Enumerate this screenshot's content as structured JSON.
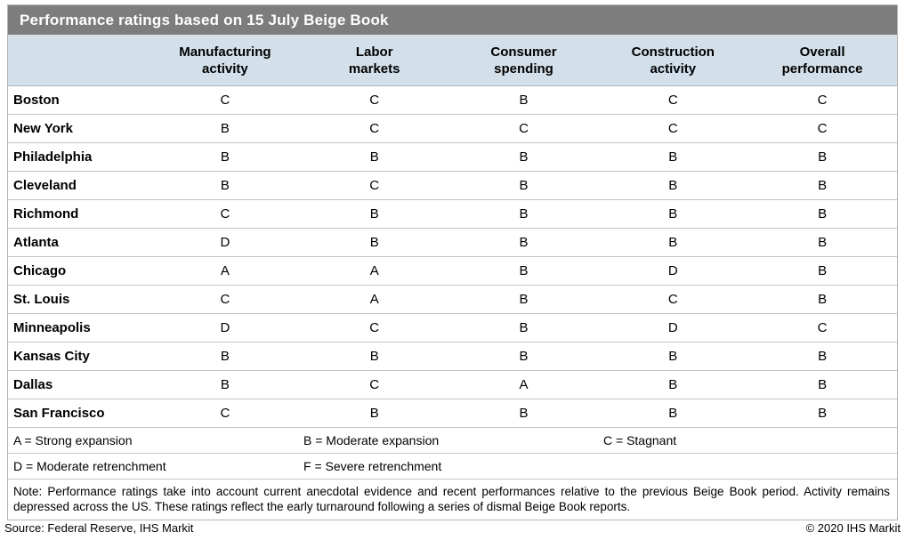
{
  "title": "Performance ratings based on 15 July Beige Book",
  "columns": [
    "Manufacturing\nactivity",
    "Labor\nmarkets",
    "Consumer\nspending",
    "Construction\nactivity",
    "Overall\nperformance"
  ],
  "rows": [
    {
      "district": "Boston",
      "grades": [
        "C",
        "C",
        "B",
        "C",
        "C"
      ]
    },
    {
      "district": "New York",
      "grades": [
        "B",
        "C",
        "C",
        "C",
        "C"
      ]
    },
    {
      "district": "Philadelphia",
      "grades": [
        "B",
        "B",
        "B",
        "B",
        "B"
      ]
    },
    {
      "district": "Cleveland",
      "grades": [
        "B",
        "C",
        "B",
        "B",
        "B"
      ]
    },
    {
      "district": "Richmond",
      "grades": [
        "C",
        "B",
        "B",
        "B",
        "B"
      ]
    },
    {
      "district": "Atlanta",
      "grades": [
        "D",
        "B",
        "B",
        "B",
        "B"
      ]
    },
    {
      "district": "Chicago",
      "grades": [
        "A",
        "A",
        "B",
        "D",
        "B"
      ]
    },
    {
      "district": "St. Louis",
      "grades": [
        "C",
        "A",
        "B",
        "C",
        "B"
      ]
    },
    {
      "district": "Minneapolis",
      "grades": [
        "D",
        "C",
        "B",
        "D",
        "C"
      ]
    },
    {
      "district": "Kansas City",
      "grades": [
        "B",
        "B",
        "B",
        "B",
        "B"
      ]
    },
    {
      "district": "Dallas",
      "grades": [
        "B",
        "C",
        "A",
        "B",
        "B"
      ]
    },
    {
      "district": "San Francisco",
      "grades": [
        "C",
        "B",
        "B",
        "B",
        "B"
      ]
    }
  ],
  "legend": {
    "row1": [
      "A = Strong expansion",
      "B = Moderate expansion",
      "C = Stagnant"
    ],
    "row2": [
      "D = Moderate retrenchment",
      "F = Severe retrenchment",
      ""
    ]
  },
  "note": "Note: Performance ratings take into account current anecdotal evidence and recent performances relative to the previous Beige Book period. Activity remains depressed across the US. These ratings reflect the early turnaround following a series of dismal Beige Book reports.",
  "footer": {
    "source": "Source: Federal Reserve, IHS Markit",
    "copyright": "© 2020 IHS Markit"
  },
  "colors": {
    "title_bar_bg": "#7d7d7d",
    "title_text": "#ffffff",
    "header_bg": "#d3e0ea",
    "border": "#b5b5b5",
    "row_divider": "#c4c4c4",
    "body_text": "#000000"
  },
  "chart_data": {
    "type": "table",
    "title": "Performance ratings based on 15 July Beige Book",
    "columns": [
      "Manufacturing activity",
      "Labor markets",
      "Consumer spending",
      "Construction activity",
      "Overall performance"
    ],
    "rows": [
      {
        "district": "Boston",
        "grades": [
          "C",
          "C",
          "B",
          "C",
          "C"
        ]
      },
      {
        "district": "New York",
        "grades": [
          "B",
          "C",
          "C",
          "C",
          "C"
        ]
      },
      {
        "district": "Philadelphia",
        "grades": [
          "B",
          "B",
          "B",
          "B",
          "B"
        ]
      },
      {
        "district": "Cleveland",
        "grades": [
          "B",
          "C",
          "B",
          "B",
          "B"
        ]
      },
      {
        "district": "Richmond",
        "grades": [
          "C",
          "B",
          "B",
          "B",
          "B"
        ]
      },
      {
        "district": "Atlanta",
        "grades": [
          "D",
          "B",
          "B",
          "B",
          "B"
        ]
      },
      {
        "district": "Chicago",
        "grades": [
          "A",
          "A",
          "B",
          "D",
          "B"
        ]
      },
      {
        "district": "St. Louis",
        "grades": [
          "C",
          "A",
          "B",
          "C",
          "B"
        ]
      },
      {
        "district": "Minneapolis",
        "grades": [
          "D",
          "C",
          "B",
          "D",
          "C"
        ]
      },
      {
        "district": "Kansas City",
        "grades": [
          "B",
          "B",
          "B",
          "B",
          "B"
        ]
      },
      {
        "district": "Dallas",
        "grades": [
          "B",
          "C",
          "A",
          "B",
          "B"
        ]
      },
      {
        "district": "San Francisco",
        "grades": [
          "C",
          "B",
          "B",
          "B",
          "B"
        ]
      }
    ],
    "grade_scale": {
      "A": "Strong expansion",
      "B": "Moderate expansion",
      "C": "Stagnant",
      "D": "Moderate retrenchment",
      "F": "Severe retrenchment"
    },
    "note": "Performance ratings take into account current anecdotal evidence and recent performances relative to the previous Beige Book period. Activity remains depressed across the US. These ratings reflect the early turnaround following a series of dismal Beige Book reports.",
    "source": "Federal Reserve, IHS Markit"
  }
}
